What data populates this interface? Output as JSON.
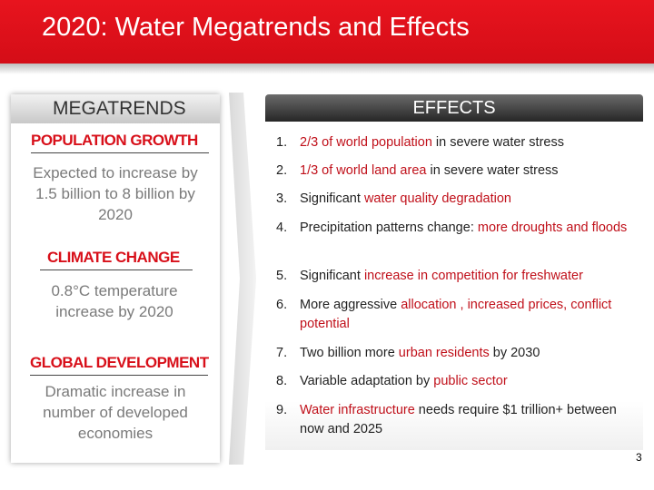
{
  "title": "2020: Water Megatrends and Effects",
  "megatrends": {
    "heading": "MEGATRENDS",
    "sections": [
      {
        "title": "POPULATION GROWTH",
        "body": "Expected to increase by 1.5 billion to 8 billion by 2020"
      },
      {
        "title": "CLIMATE CHANGE",
        "body": "0.8°C temperature increase by 2020"
      },
      {
        "title": "GLOBAL DEVELOPMENT",
        "body": "Dramatic increase in number of developed economies"
      }
    ]
  },
  "effects": {
    "heading": "EFFECTS",
    "items": [
      {
        "num": "1.",
        "pre": "",
        "hl": "2/3 of world population",
        "post": " in severe water stress"
      },
      {
        "num": "2.",
        "pre": "",
        "hl": "1/3 of world land area",
        "post": " in severe water stress"
      },
      {
        "num": "3.",
        "pre": "Significant ",
        "hl": "water quality degradation",
        "post": ""
      },
      {
        "num": "4.",
        "pre": "Precipitation patterns change: ",
        "hl": "more droughts and floods",
        "post": ""
      },
      {
        "num": "5.",
        "pre": "Significant ",
        "hl": "increase in competition for freshwater",
        "post": ""
      },
      {
        "num": "6.",
        "pre": "More aggressive ",
        "hl": "allocation , increased prices, conflict potential",
        "post": ""
      },
      {
        "num": "7.",
        "pre": "Two billion more ",
        "hl": "urban residents",
        "post": " by 2030"
      },
      {
        "num": "8.",
        "pre": "Variable adaptation by ",
        "hl": "public sector",
        "post": ""
      },
      {
        "num": "9.",
        "pre": "",
        "hl": "Water infrastructure",
        "post": " needs require $1 trillion+ between now and 2025"
      }
    ]
  },
  "page_number": "3",
  "colors": {
    "accent": "#e8141e",
    "highlight": "#c0101a"
  }
}
